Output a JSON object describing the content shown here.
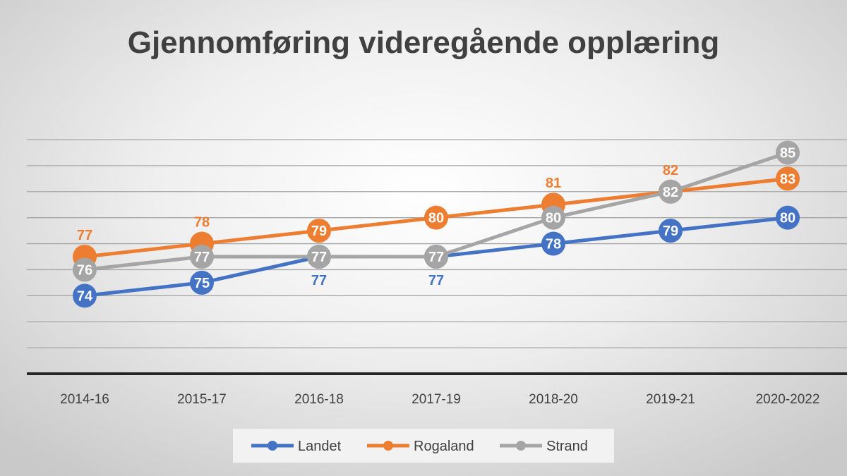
{
  "chart_data": {
    "type": "line",
    "title": "Gjennomføring videregående opplæring",
    "categories": [
      "2014-16",
      "2015-17",
      "2016-18",
      "2017-19",
      "2018-20",
      "2019-21",
      "2020-2022"
    ],
    "series": [
      {
        "name": "Landet",
        "color": "#4472C4",
        "values": [
          74,
          75,
          77,
          77,
          78,
          79,
          80
        ]
      },
      {
        "name": "Rogaland",
        "color": "#ED7D31",
        "values": [
          77,
          78,
          79,
          80,
          81,
          82,
          83
        ]
      },
      {
        "name": "Strand",
        "color": "#A5A5A5",
        "values": [
          76,
          77,
          77,
          77,
          80,
          82,
          85
        ]
      }
    ],
    "ylim": [
      68,
      86
    ],
    "ytick_step": 2,
    "yaxis_labels_shown": false,
    "grid": true,
    "data_labels": true,
    "legend_position": "bottom",
    "xlabel": "",
    "ylabel": ""
  }
}
